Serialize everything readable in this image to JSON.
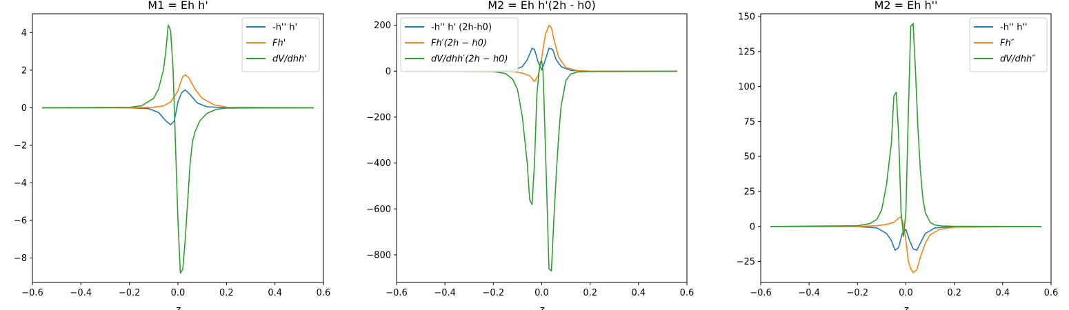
{
  "chart_data": [
    {
      "type": "line",
      "title": "M1 = Eh h'",
      "xlabel": "z",
      "ylabel": "",
      "xlim": [
        -0.6,
        0.6
      ],
      "ylim": [
        -9.3,
        5.0
      ],
      "xticks": [
        -0.6,
        -0.4,
        -0.2,
        0.0,
        0.2,
        0.4,
        0.6
      ],
      "xtick_labels": [
        "−0.6",
        "−0.4",
        "−0.2",
        "0.0",
        "0.2",
        "0.4",
        "0.6"
      ],
      "yticks": [
        -8,
        -6,
        -4,
        -2,
        0,
        2,
        4
      ],
      "ytick_labels": [
        "−8",
        "−6",
        "−4",
        "−2",
        "0",
        "2",
        "4"
      ],
      "legend_position": "top-right",
      "series": [
        {
          "name": "-h'' h'",
          "color": "#1f77b4",
          "x": [
            -0.56,
            -0.2,
            -0.12,
            -0.08,
            -0.05,
            -0.03,
            -0.015,
            0.0,
            0.015,
            0.03,
            0.05,
            0.08,
            0.12,
            0.2,
            0.56
          ],
          "y": [
            0,
            0,
            -0.05,
            -0.25,
            -0.7,
            -0.9,
            -0.7,
            0.3,
            0.8,
            0.95,
            0.7,
            0.25,
            0.05,
            0,
            0
          ]
        },
        {
          "name": "Fh'",
          "color": "#ff7f0e",
          "x": [
            -0.56,
            -0.2,
            -0.1,
            -0.06,
            -0.03,
            0.0,
            0.01,
            0.02,
            0.03,
            0.045,
            0.07,
            0.1,
            0.15,
            0.2,
            0.56
          ],
          "y": [
            0,
            0,
            0.02,
            0.1,
            0.3,
            0.9,
            1.3,
            1.65,
            1.75,
            1.6,
            1.0,
            0.5,
            0.15,
            0.03,
            0
          ]
        },
        {
          "name": "dV/dhh'",
          "color": "#2ca02c",
          "x": [
            -0.56,
            -0.2,
            -0.15,
            -0.1,
            -0.08,
            -0.06,
            -0.05,
            -0.04,
            -0.03,
            -0.02,
            -0.01,
            0.0,
            0.01,
            0.02,
            0.03,
            0.04,
            0.05,
            0.06,
            0.07,
            0.09,
            0.12,
            0.16,
            0.2,
            0.56
          ],
          "y": [
            0,
            0.02,
            0.1,
            0.5,
            1.0,
            2.0,
            3.0,
            4.4,
            4.1,
            2.0,
            -2.0,
            -6.0,
            -8.8,
            -8.6,
            -7.0,
            -5.0,
            -3.0,
            -1.8,
            -1.3,
            -0.7,
            -0.3,
            -0.08,
            -0.02,
            0
          ]
        }
      ]
    },
    {
      "type": "line",
      "title": "M2 = Eh h'(2h - h0)",
      "xlabel": "z",
      "ylabel": "",
      "xlim": [
        -0.6,
        0.6
      ],
      "ylim": [
        -920,
        250
      ],
      "xticks": [
        -0.6,
        -0.4,
        -0.2,
        0.0,
        0.2,
        0.4,
        0.6
      ],
      "xtick_labels": [
        "−0.6",
        "−0.4",
        "−0.2",
        "0.0",
        "0.2",
        "0.4",
        "0.6"
      ],
      "yticks": [
        -800,
        -600,
        -400,
        -200,
        0,
        200
      ],
      "ytick_labels": [
        "−800",
        "−600",
        "−400",
        "−200",
        "0",
        "200"
      ],
      "legend_position": "top-left",
      "series": [
        {
          "name": "-h'' h' (2h-h0)",
          "color": "#1f77b4",
          "x": [
            -0.56,
            -0.2,
            -0.12,
            -0.08,
            -0.06,
            -0.04,
            -0.03,
            -0.015,
            0.0,
            0.015,
            0.03,
            0.045,
            0.06,
            0.08,
            0.12,
            0.2,
            0.56
          ],
          "y": [
            0,
            0,
            3,
            20,
            50,
            100,
            95,
            40,
            5,
            50,
            100,
            95,
            50,
            20,
            3,
            0,
            0
          ]
        },
        {
          "name": "Fh′(2h − h0)",
          "color": "#ff7f0e",
          "x": [
            -0.56,
            -0.2,
            -0.12,
            -0.08,
            -0.05,
            -0.03,
            -0.015,
            0.0,
            0.015,
            0.03,
            0.04,
            0.05,
            0.07,
            0.1,
            0.15,
            0.2,
            0.56
          ],
          "y": [
            0,
            0,
            -2,
            -8,
            -20,
            -45,
            -20,
            60,
            160,
            200,
            190,
            140,
            60,
            15,
            2,
            0,
            0
          ]
        },
        {
          "name": "dV/dhh′(2h − h0)",
          "color": "#2ca02c",
          "x": [
            -0.56,
            -0.2,
            -0.15,
            -0.12,
            -0.1,
            -0.08,
            -0.06,
            -0.05,
            -0.04,
            -0.03,
            -0.02,
            -0.01,
            -0.005,
            0.0,
            0.005,
            0.01,
            0.02,
            0.03,
            0.04,
            0.05,
            0.06,
            0.07,
            0.08,
            0.1,
            0.12,
            0.15,
            0.2,
            0.56
          ],
          "y": [
            0,
            -2,
            -10,
            -35,
            -80,
            -200,
            -400,
            -560,
            -580,
            -400,
            -100,
            10,
            40,
            45,
            0,
            -150,
            -500,
            -860,
            -870,
            -650,
            -450,
            -280,
            -150,
            -40,
            -12,
            -3,
            -1,
            0
          ]
        }
      ]
    },
    {
      "type": "line",
      "title": "M2 = Eh h''",
      "xlabel": "z",
      "ylabel": "",
      "xlim": [
        -0.6,
        0.6
      ],
      "ylim": [
        -40,
        152
      ],
      "xticks": [
        -0.6,
        -0.4,
        -0.2,
        0.0,
        0.2,
        0.4,
        0.6
      ],
      "xtick_labels": [
        "−0.6",
        "−0.4",
        "−0.2",
        "0.0",
        "0.2",
        "0.4",
        "0.6"
      ],
      "yticks": [
        -25,
        0,
        25,
        50,
        75,
        100,
        125,
        150
      ],
      "ytick_labels": [
        "−25",
        "0",
        "25",
        "50",
        "75",
        "100",
        "125",
        "150"
      ],
      "legend_position": "top-right",
      "series": [
        {
          "name": "-h'' h''",
          "color": "#1f77b4",
          "x": [
            -0.56,
            -0.2,
            -0.12,
            -0.08,
            -0.06,
            -0.045,
            -0.03,
            -0.015,
            0.0,
            0.015,
            0.03,
            0.045,
            0.06,
            0.08,
            0.12,
            0.2,
            0.56
          ],
          "y": [
            0,
            0,
            -1,
            -5,
            -10,
            -17,
            -15,
            -5,
            -2,
            -10,
            -16,
            -17,
            -12,
            -5,
            -1,
            0,
            0
          ]
        },
        {
          "name": "Fh″",
          "color": "#ff7f0e",
          "x": [
            -0.56,
            -0.2,
            -0.12,
            -0.08,
            -0.05,
            -0.03,
            -0.02,
            -0.01,
            0.0,
            0.01,
            0.02,
            0.03,
            0.045,
            0.06,
            0.08,
            0.1,
            0.14,
            0.2,
            0.56
          ],
          "y": [
            0,
            0,
            0.5,
            1.5,
            3,
            6,
            7,
            2,
            -10,
            -25,
            -30,
            -33,
            -31,
            -22,
            -12,
            -6,
            -2,
            -0.5,
            0
          ]
        },
        {
          "name": "dV/dhh″",
          "color": "#2ca02c",
          "x": [
            -0.56,
            -0.2,
            -0.15,
            -0.12,
            -0.1,
            -0.08,
            -0.06,
            -0.05,
            -0.04,
            -0.03,
            -0.02,
            -0.01,
            0.0,
            0.01,
            0.02,
            0.03,
            0.04,
            0.05,
            0.06,
            0.07,
            0.08,
            0.1,
            0.12,
            0.15,
            0.2,
            0.56
          ],
          "y": [
            0,
            0.5,
            2,
            5,
            12,
            30,
            60,
            93,
            96,
            65,
            10,
            -7,
            10,
            80,
            143,
            145,
            110,
            70,
            40,
            20,
            10,
            3,
            1,
            0.3,
            0.1,
            0
          ]
        }
      ]
    }
  ]
}
